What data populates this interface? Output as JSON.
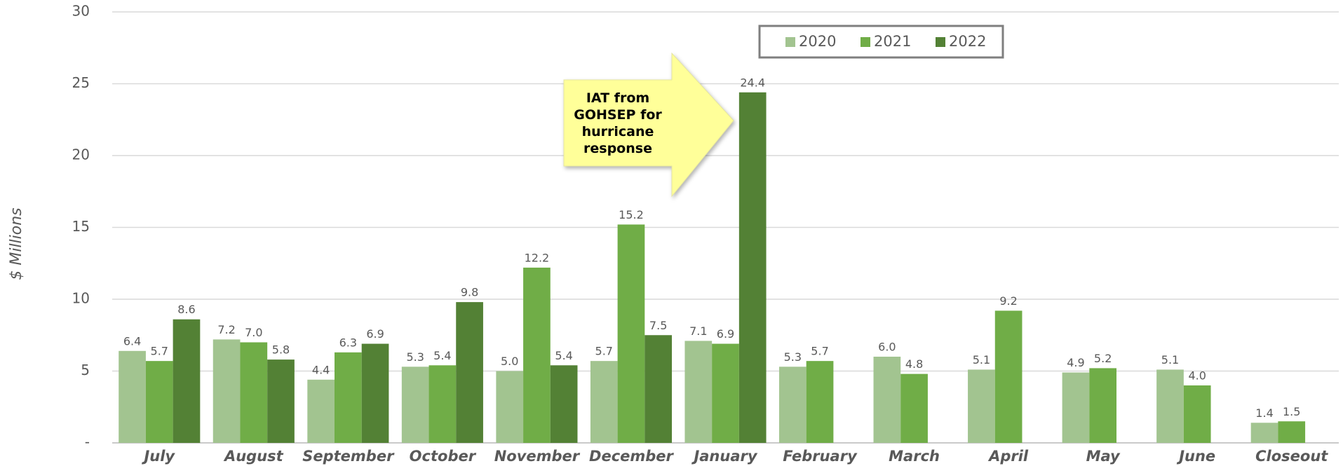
{
  "chart_data": {
    "type": "bar",
    "y_label": "$ Millions",
    "annotation": "IAT from GOHSEP for hurricane response",
    "categories": [
      "July",
      "August",
      "September",
      "October",
      "November",
      "December",
      "January",
      "February",
      "March",
      "April",
      "May",
      "June",
      "Closeout"
    ],
    "series": [
      {
        "name": "2020",
        "color": "#a2c490",
        "values": [
          6.4,
          7.2,
          4.4,
          5.3,
          5.0,
          5.7,
          7.1,
          5.3,
          6.0,
          5.1,
          4.9,
          5.1,
          1.4
        ],
        "value_labels": [
          "6.4",
          "7.2",
          "4.4",
          "5.3",
          "5.0",
          "5.7",
          "7.1",
          "5.3",
          "6.0",
          "5.1",
          "4.9",
          "5.1",
          "1.4"
        ]
      },
      {
        "name": "2021",
        "color": "#70ad47",
        "values": [
          5.7,
          7.0,
          6.3,
          5.4,
          12.2,
          15.2,
          6.9,
          5.7,
          4.8,
          9.2,
          5.2,
          4.0,
          1.5
        ],
        "value_labels": [
          "5.7",
          "7.0",
          "6.3",
          "5.4",
          "12.2",
          "15.2",
          "6.9",
          "5.7",
          "4.8",
          "9.2",
          "5.2",
          "4.0",
          "1.5"
        ]
      },
      {
        "name": "2022",
        "color": "#538135",
        "values": [
          8.6,
          5.8,
          6.9,
          9.8,
          5.4,
          7.5,
          24.4,
          null,
          null,
          null,
          null,
          null,
          null
        ],
        "value_labels": [
          "8.6",
          "5.8",
          "6.9",
          "9.8",
          "5.4",
          "7.5",
          "24.4",
          null,
          null,
          null,
          null,
          null,
          null
        ]
      }
    ],
    "ylim": [
      0,
      30
    ],
    "yticks": [
      {
        "value": 0,
        "label": "-"
      },
      5,
      10,
      15,
      20,
      25,
      30
    ],
    "grid": true,
    "legend": "top"
  }
}
